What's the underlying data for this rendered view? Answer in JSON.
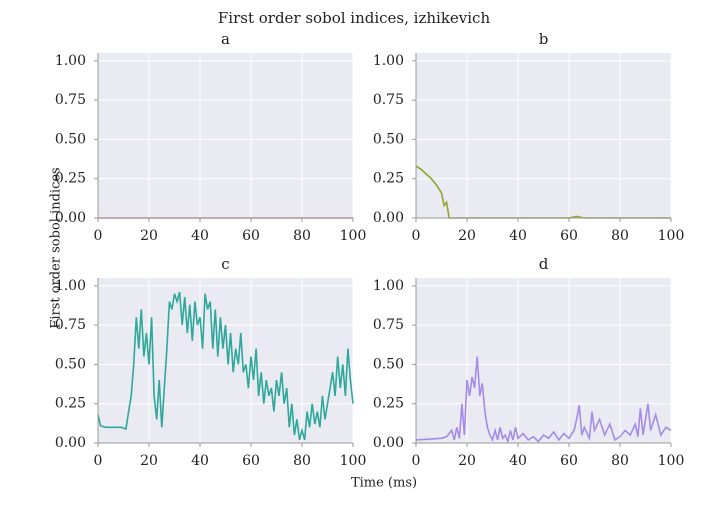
{
  "title": "First order sobol indices, izhikevich",
  "xlabel": "Time (ms)",
  "ylabel": "First order sobol indices",
  "chart_data": [
    {
      "type": "line",
      "title": "a",
      "color": "#d98a8a",
      "x": [
        0,
        25,
        50,
        75,
        100
      ],
      "values": [
        0,
        0,
        0,
        0,
        0
      ],
      "xlim": [
        0,
        100
      ],
      "ylim": [
        0,
        1.05
      ],
      "xticks": [
        0,
        20,
        40,
        60,
        80,
        100
      ],
      "yticks": [
        {
          "value": 0,
          "label": "0.00"
        },
        {
          "value": 0.25,
          "label": "0.25"
        },
        {
          "value": 0.5,
          "label": "0.50"
        },
        {
          "value": 0.75,
          "label": "0.75"
        },
        {
          "value": 1,
          "label": "1.00"
        }
      ],
      "grid": true
    },
    {
      "type": "line",
      "title": "b",
      "color": "#97a22e",
      "x": [
        0,
        2,
        4,
        6,
        8,
        10,
        11,
        12,
        13,
        20,
        40,
        60,
        63,
        66,
        100
      ],
      "values": [
        0.33,
        0.31,
        0.28,
        0.25,
        0.21,
        0.16,
        0.08,
        0.1,
        0,
        0,
        0,
        0,
        0.01,
        0,
        0
      ],
      "xlim": [
        0,
        100
      ],
      "ylim": [
        0,
        1.05
      ],
      "xticks": [
        0,
        20,
        40,
        60,
        80,
        100
      ],
      "yticks": [
        {
          "value": 0,
          "label": "0.00"
        },
        {
          "value": 0.25,
          "label": "0.25"
        },
        {
          "value": 0.5,
          "label": "0.50"
        },
        {
          "value": 0.75,
          "label": "0.75"
        },
        {
          "value": 1,
          "label": "1.00"
        }
      ],
      "grid": true
    },
    {
      "type": "line",
      "title": "c",
      "color": "#2fa89b",
      "x": [
        0,
        1,
        3,
        6,
        9,
        11,
        12,
        13,
        14,
        15,
        16,
        17,
        18,
        19,
        20,
        21,
        22,
        23,
        24,
        25,
        26,
        27,
        28,
        29,
        30,
        31,
        32,
        33,
        34,
        35,
        36,
        37,
        38,
        39,
        40,
        41,
        42,
        43,
        44,
        45,
        46,
        47,
        48,
        49,
        50,
        51,
        52,
        53,
        54,
        55,
        56,
        57,
        58,
        59,
        60,
        61,
        62,
        63,
        64,
        65,
        66,
        67,
        68,
        69,
        70,
        71,
        72,
        73,
        74,
        75,
        76,
        77,
        78,
        79,
        80,
        81,
        82,
        83,
        84,
        85,
        86,
        87,
        88,
        89,
        90,
        91,
        92,
        93,
        94,
        95,
        96,
        97,
        98,
        99,
        100
      ],
      "values": [
        0.18,
        0.11,
        0.1,
        0.1,
        0.1,
        0.09,
        0.2,
        0.3,
        0.5,
        0.8,
        0.6,
        0.85,
        0.55,
        0.7,
        0.5,
        0.8,
        0.3,
        0.15,
        0.4,
        0.1,
        0.35,
        0.6,
        0.9,
        0.85,
        0.95,
        0.9,
        0.96,
        0.75,
        0.93,
        0.7,
        0.88,
        0.65,
        0.9,
        0.75,
        0.8,
        0.6,
        0.95,
        0.85,
        0.9,
        0.6,
        0.85,
        0.55,
        0.8,
        0.6,
        0.75,
        0.5,
        0.7,
        0.45,
        0.6,
        0.5,
        0.7,
        0.45,
        0.5,
        0.35,
        0.55,
        0.4,
        0.6,
        0.3,
        0.45,
        0.25,
        0.4,
        0.3,
        0.35,
        0.2,
        0.4,
        0.3,
        0.45,
        0.25,
        0.35,
        0.1,
        0.25,
        0.05,
        0.15,
        0.02,
        0.08,
        0.02,
        0.2,
        0.1,
        0.25,
        0.12,
        0.2,
        0.1,
        0.3,
        0.15,
        0.25,
        0.35,
        0.45,
        0.3,
        0.55,
        0.35,
        0.5,
        0.3,
        0.6,
        0.4,
        0.25
      ],
      "xlim": [
        0,
        100
      ],
      "ylim": [
        0,
        1.05
      ],
      "xticks": [
        0,
        20,
        40,
        60,
        80,
        100
      ],
      "yticks": [
        {
          "value": 0,
          "label": "0.00"
        },
        {
          "value": 0.25,
          "label": "0.25"
        },
        {
          "value": 0.5,
          "label": "0.50"
        },
        {
          "value": 0.75,
          "label": "0.75"
        },
        {
          "value": 1,
          "label": "1.00"
        }
      ],
      "grid": true
    },
    {
      "type": "line",
      "title": "d",
      "color": "#a58ce8",
      "x": [
        0,
        10,
        12,
        14,
        15,
        16,
        17,
        18,
        19,
        20,
        21,
        22,
        23,
        24,
        25,
        26,
        27,
        28,
        29,
        30,
        31,
        32,
        33,
        34,
        35,
        36,
        37,
        38,
        39,
        40,
        42,
        44,
        46,
        48,
        50,
        52,
        54,
        56,
        58,
        60,
        62,
        63,
        64,
        65,
        66,
        68,
        69,
        70,
        72,
        74,
        76,
        78,
        80,
        82,
        84,
        86,
        87,
        88,
        89,
        90,
        91,
        92,
        94,
        96,
        98,
        100
      ],
      "values": [
        0.02,
        0.03,
        0.04,
        0.08,
        0.02,
        0.1,
        0.03,
        0.25,
        0.05,
        0.4,
        0.3,
        0.42,
        0.35,
        0.55,
        0.3,
        0.38,
        0.2,
        0.1,
        0.05,
        0.02,
        0.08,
        0.02,
        0.1,
        0.03,
        0.05,
        0.01,
        0.08,
        0.02,
        0.1,
        0.03,
        0.06,
        0.02,
        0.04,
        0.01,
        0.05,
        0.03,
        0.07,
        0.02,
        0.06,
        0.03,
        0.08,
        0.15,
        0.24,
        0.05,
        0.1,
        0.03,
        0.2,
        0.08,
        0.15,
        0.05,
        0.12,
        0.02,
        0.04,
        0.08,
        0.05,
        0.12,
        0.04,
        0.22,
        0.05,
        0.15,
        0.25,
        0.08,
        0.18,
        0.05,
        0.1,
        0.08
      ],
      "xlim": [
        0,
        100
      ],
      "ylim": [
        0,
        1.05
      ],
      "xticks": [
        0,
        20,
        40,
        60,
        80,
        100
      ],
      "yticks": [
        {
          "value": 0,
          "label": "0.00"
        },
        {
          "value": 0.25,
          "label": "0.25"
        },
        {
          "value": 0.5,
          "label": "0.50"
        },
        {
          "value": 0.75,
          "label": "0.75"
        },
        {
          "value": 1,
          "label": "1.00"
        }
      ],
      "grid": true
    }
  ]
}
